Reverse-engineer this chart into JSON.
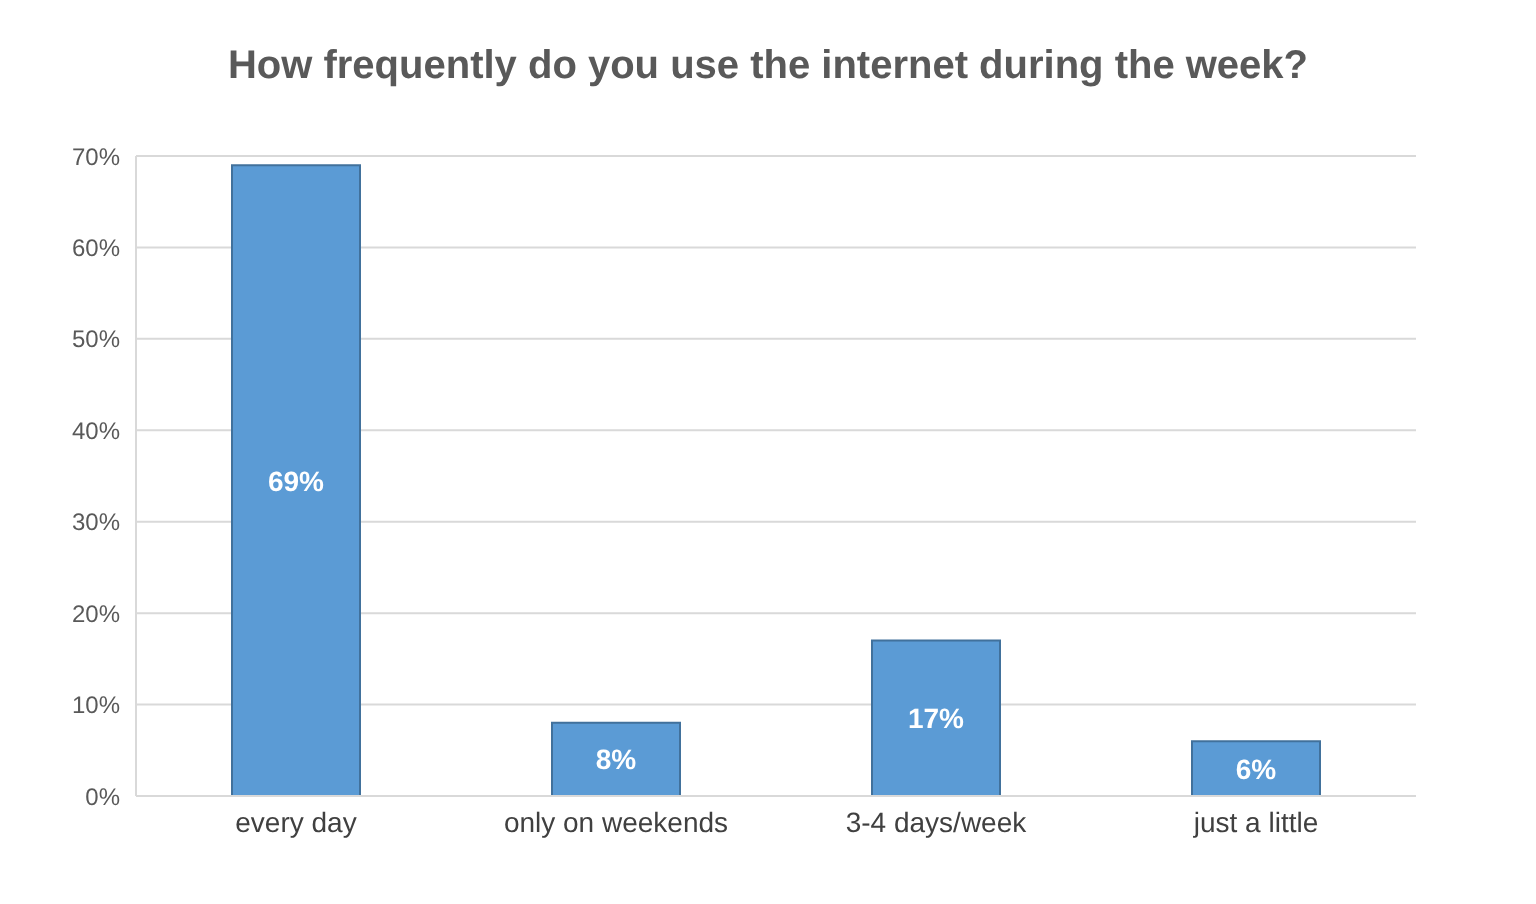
{
  "chart_data": {
    "type": "bar",
    "title": "How frequently do you use the internet during the week?",
    "categories": [
      "every day",
      "only on weekends",
      "3-4 days/week",
      "just a little"
    ],
    "values": [
      69,
      8,
      17,
      6
    ],
    "color": "#5b9bd5",
    "value_labels": [
      "69%",
      "8%",
      "17%",
      "6%"
    ],
    "ylim": [
      0,
      70
    ],
    "yticks": [
      {
        "value": 0,
        "label": "0%"
      },
      {
        "value": 10,
        "label": "10%"
      },
      {
        "value": 20,
        "label": "20%"
      },
      {
        "value": 30,
        "label": "30%"
      },
      {
        "value": 40,
        "label": "40%"
      },
      {
        "value": 50,
        "label": "50%"
      },
      {
        "value": 60,
        "label": "60%"
      },
      {
        "value": 70,
        "label": "70%"
      }
    ],
    "grid": "y"
  }
}
